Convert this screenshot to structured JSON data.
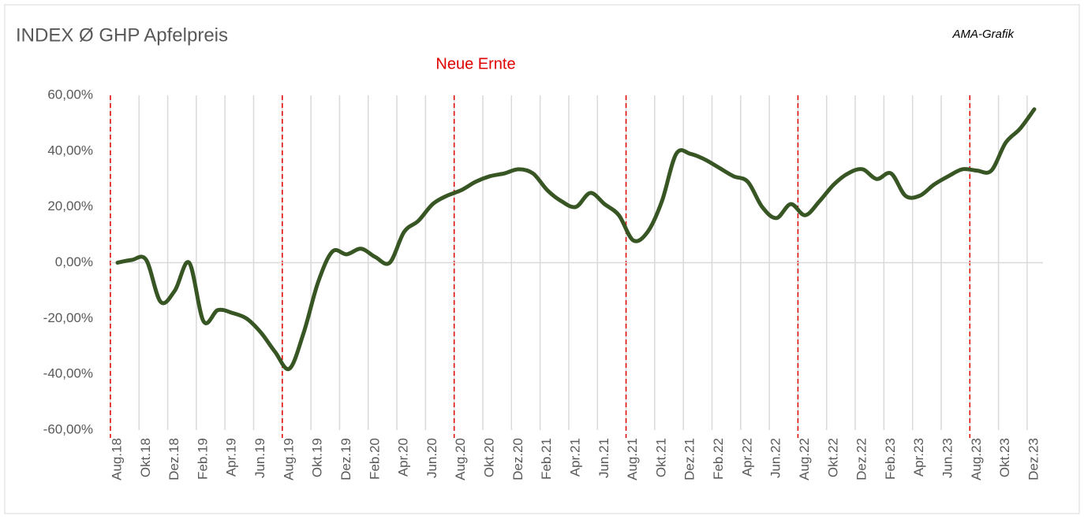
{
  "chart_data": {
    "type": "line",
    "title": "INDEX Ø GHP Apfelpreis",
    "source": "AMA-Grafik",
    "annotation": "Neue Ernte",
    "categories": [
      "Aug.18",
      null,
      "Okt.18",
      null,
      "Dez.18",
      null,
      "Feb.19",
      null,
      "Apr.19",
      null,
      "Jun.19",
      null,
      "Aug.19",
      null,
      "Okt.19",
      null,
      "Dez.19",
      null,
      "Feb.20",
      null,
      "Apr.20",
      null,
      "Jun.20",
      null,
      "Aug.20",
      null,
      "Okt.20",
      null,
      "Dez.20",
      null,
      "Feb.21",
      null,
      "Apr.21",
      null,
      "Jun.21",
      null,
      "Aug.21",
      null,
      "Okt.21",
      null,
      "Dez.21",
      null,
      "Feb.22",
      null,
      "Apr.22",
      null,
      "Jun.22",
      null,
      "Aug.22",
      null,
      "Okt.22",
      null,
      "Dez.22",
      null,
      "Feb.23",
      null,
      "Apr.23",
      null,
      "Jun.23",
      null,
      "Aug.23",
      null,
      "Okt.23",
      null,
      "Dez.23"
    ],
    "series": [
      {
        "color": "#375623",
        "values": [
          0,
          1,
          1,
          -14,
          -10,
          0,
          -21,
          -17,
          -18,
          -20,
          -25,
          -32,
          -38,
          -25,
          -7,
          4,
          3,
          5,
          2,
          0,
          11,
          15,
          21,
          24,
          26,
          29,
          31,
          32,
          33.5,
          32,
          26,
          22,
          20,
          25,
          21,
          17,
          8,
          11,
          22,
          39,
          39,
          37,
          34,
          31,
          29,
          20,
          16,
          21,
          17,
          22,
          28,
          32,
          33.5,
          30,
          32,
          24,
          24,
          28,
          31,
          33.5,
          33,
          33,
          43,
          48,
          55
        ]
      }
    ],
    "ylim": [
      -60,
      60
    ],
    "yticks": [
      {
        "value": -60,
        "label": "-60,00%"
      },
      {
        "value": -40,
        "label": "-40,00%"
      },
      {
        "value": -20,
        "label": "-20,00%"
      },
      {
        "value": 0,
        "label": "0,00%"
      },
      {
        "value": 20,
        "label": "20,00%"
      },
      {
        "value": 40,
        "label": "40,00%"
      },
      {
        "value": 60,
        "label": "60,00%"
      }
    ]
  }
}
